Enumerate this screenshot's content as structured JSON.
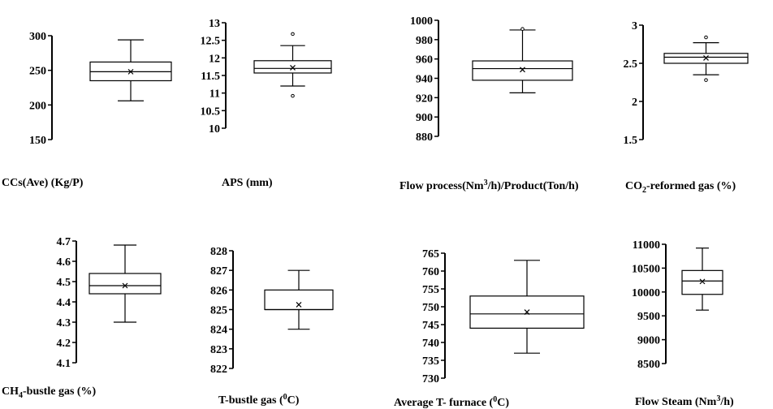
{
  "chart_data": [
    {
      "type": "boxplot",
      "xlabel": "CCs(Ave) (Kg/P)",
      "ylim": [
        150,
        300
      ],
      "ticks": [
        "150",
        "200",
        "250",
        "300"
      ],
      "tick_values": [
        150,
        200,
        250,
        300
      ],
      "box": {
        "whisker_low": 206,
        "q1": 235,
        "median": 248,
        "q3": 262,
        "whisker_high": 294,
        "mean": 248
      },
      "outliers": []
    },
    {
      "type": "boxplot",
      "xlabel": "APS (mm)",
      "ylim": [
        10,
        13
      ],
      "ticks": [
        "10",
        "10.5",
        "11",
        "11.5",
        "12",
        "12.5",
        "13"
      ],
      "tick_values": [
        10,
        10.5,
        11,
        11.5,
        12,
        12.5,
        13
      ],
      "box": {
        "whisker_low": 11.2,
        "q1": 11.57,
        "median": 11.7,
        "q3": 11.92,
        "whisker_high": 12.35,
        "mean": 11.72
      },
      "outliers": [
        12.68,
        10.92
      ]
    },
    {
      "type": "boxplot",
      "xlabel_parts": [
        "Flow process(Nm",
        "3",
        "/h)/Product(Ton/h)"
      ],
      "ylim": [
        880,
        1000
      ],
      "ticks": [
        "880",
        "900",
        "920",
        "940",
        "960",
        "980",
        "1000"
      ],
      "tick_values": [
        880,
        900,
        920,
        940,
        960,
        980,
        1000
      ],
      "box": {
        "whisker_low": 925,
        "q1": 938,
        "median": 950,
        "q3": 958,
        "whisker_high": 990,
        "mean": 949
      },
      "outliers": [
        991
      ]
    },
    {
      "type": "boxplot",
      "xlabel_parts": [
        "CO",
        "2",
        "-reformed  gas (%)"
      ],
      "ylim": [
        1.5,
        3
      ],
      "ticks": [
        "1.5",
        "2",
        "2.5",
        "3"
      ],
      "tick_values": [
        1.5,
        2,
        2.5,
        3
      ],
      "box": {
        "whisker_low": 2.35,
        "q1": 2.5,
        "median": 2.58,
        "q3": 2.63,
        "whisker_high": 2.77,
        "mean": 2.57
      },
      "outliers": [
        2.84,
        2.28
      ]
    },
    {
      "type": "boxplot",
      "xlabel_parts": [
        "CH",
        "4",
        "-bustle gas (%)"
      ],
      "ylim": [
        4.1,
        4.7
      ],
      "ticks": [
        "4.1",
        "4.2",
        "4.3",
        "4.4",
        "4.5",
        "4.6",
        "4.7"
      ],
      "tick_values": [
        4.1,
        4.2,
        4.3,
        4.4,
        4.5,
        4.6,
        4.7
      ],
      "box": {
        "whisker_low": 4.3,
        "q1": 4.44,
        "median": 4.48,
        "q3": 4.54,
        "whisker_high": 4.68,
        "mean": 4.48
      },
      "outliers": []
    },
    {
      "type": "boxplot",
      "xlabel_parts": [
        "T-bustle gas (",
        "0",
        "C)"
      ],
      "ylim": [
        822,
        828
      ],
      "ticks": [
        "822",
        "823",
        "824",
        "825",
        "826",
        "827",
        "828"
      ],
      "tick_values": [
        822,
        823,
        824,
        825,
        826,
        827,
        828
      ],
      "box": {
        "whisker_low": 824,
        "q1": 825,
        "median": 825,
        "q3": 826,
        "whisker_high": 827,
        "mean": 825.25
      },
      "outliers": []
    },
    {
      "type": "boxplot",
      "xlabel_parts": [
        "Average T- furnace (",
        "0",
        "C)"
      ],
      "ylim": [
        730,
        765
      ],
      "ticks": [
        "730",
        "735",
        "740",
        "745",
        "750",
        "755",
        "760",
        "765"
      ],
      "tick_values": [
        730,
        735,
        740,
        745,
        750,
        755,
        760,
        765
      ],
      "box": {
        "whisker_low": 737,
        "q1": 744,
        "median": 748,
        "q3": 753,
        "whisker_high": 763,
        "mean": 748.5
      },
      "outliers": []
    },
    {
      "type": "boxplot",
      "xlabel_parts": [
        "Flow Steam (Nm",
        "3",
        "/h)"
      ],
      "ylim": [
        8500,
        11000
      ],
      "ticks": [
        "8500",
        "9000",
        "9500",
        "10000",
        "10500",
        "11000"
      ],
      "tick_values": [
        8500,
        9000,
        9500,
        10000,
        10500,
        11000
      ],
      "box": {
        "whisker_low": 9620,
        "q1": 9950,
        "median": 10230,
        "q3": 10450,
        "whisker_high": 10920,
        "mean": 10220
      },
      "outliers": []
    }
  ]
}
